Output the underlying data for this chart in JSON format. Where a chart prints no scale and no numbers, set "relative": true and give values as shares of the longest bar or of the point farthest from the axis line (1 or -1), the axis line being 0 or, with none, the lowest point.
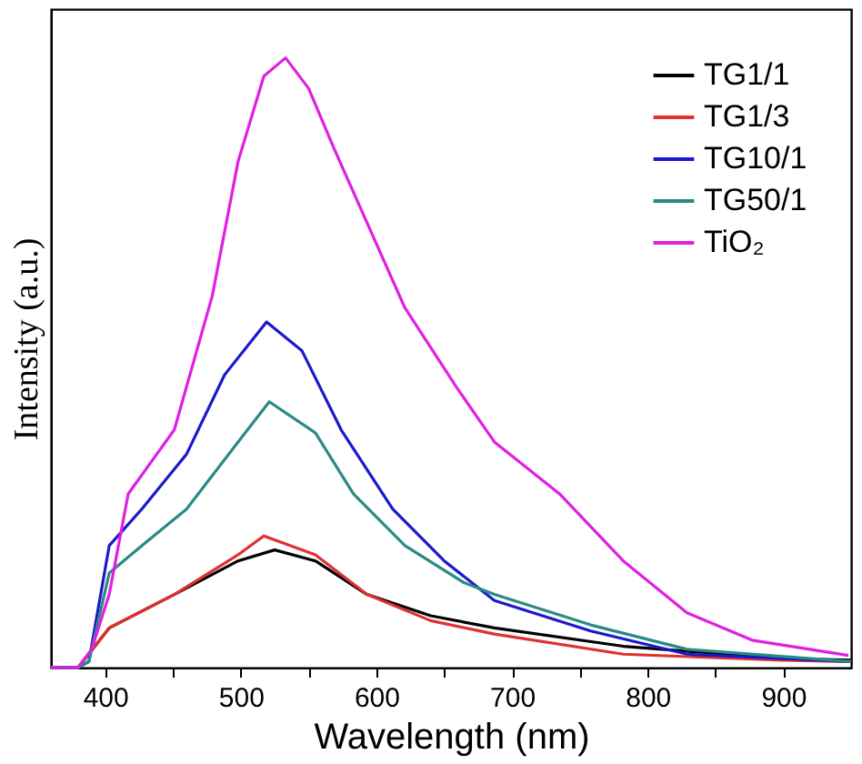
{
  "chart_data": {
    "type": "line",
    "xlabel": "Wavelength (nm)",
    "ylabel": "Intensity (a.u.)",
    "relative": true,
    "legend": "top right",
    "grid": false,
    "line_style": "solid",
    "marker": "none",
    "xlim": [
      360,
      950
    ],
    "xticks": [
      400,
      {
        "value": 450,
        "label": null
      },
      500,
      {
        "value": 550,
        "label": null
      },
      600,
      {
        "value": 650,
        "label": null
      },
      700,
      {
        "value": 750,
        "label": null
      },
      800,
      {
        "value": 850,
        "label": null
      },
      900
    ],
    "series": [
      {
        "name": "TG1/1",
        "color": "#000000",
        "x": [
          360,
          380,
          403,
          451,
          498,
          525,
          555,
          593,
          640,
          687,
          782,
          900,
          950
        ],
        "values": [
          0,
          0,
          0.065,
          0.12,
          0.175,
          0.193,
          0.175,
          0.12,
          0.085,
          0.065,
          0.035,
          0.015,
          0.012
        ]
      },
      {
        "name": "TG1/3",
        "color": "#e03030",
        "x": [
          360,
          380,
          403,
          451,
          498,
          517,
          555,
          593,
          640,
          687,
          782,
          900,
          950
        ],
        "values": [
          0,
          0,
          0.065,
          0.12,
          0.185,
          0.216,
          0.185,
          0.12,
          0.077,
          0.055,
          0.022,
          0.012,
          0.01
        ]
      },
      {
        "name": "TG10/1",
        "color": "#1a1acc",
        "x": [
          360,
          380,
          388,
          403,
          427,
          460,
          488,
          519,
          545,
          574,
          612,
          650,
          687,
          758,
          829,
          950
        ],
        "values": [
          0,
          0,
          0.01,
          0.2,
          0.26,
          0.35,
          0.48,
          0.567,
          0.52,
          0.39,
          0.26,
          0.175,
          0.11,
          0.06,
          0.022,
          0.01
        ]
      },
      {
        "name": "TG50/1",
        "color": "#2a8a86",
        "x": [
          360,
          380,
          388,
          403,
          427,
          460,
          498,
          521,
          555,
          583,
          621,
          664,
          687,
          758,
          829,
          950
        ],
        "values": [
          0,
          0,
          0.01,
          0.155,
          0.2,
          0.26,
          0.37,
          0.436,
          0.385,
          0.285,
          0.2,
          0.14,
          0.12,
          0.07,
          0.03,
          0.01
        ]
      },
      {
        "name": "TiO₂",
        "color": "#e020e0",
        "x": [
          360,
          380,
          390,
          403,
          417,
          451,
          479,
          498,
          517,
          533,
          550,
          569,
          593,
          621,
          659,
          687,
          735,
          782,
          829,
          877,
          948
        ],
        "values": [
          0,
          0,
          0.03,
          0.12,
          0.285,
          0.39,
          0.61,
          0.83,
          0.97,
          1.0,
          0.95,
          0.85,
          0.73,
          0.59,
          0.46,
          0.37,
          0.285,
          0.175,
          0.09,
          0.045,
          0.02
        ]
      }
    ]
  }
}
